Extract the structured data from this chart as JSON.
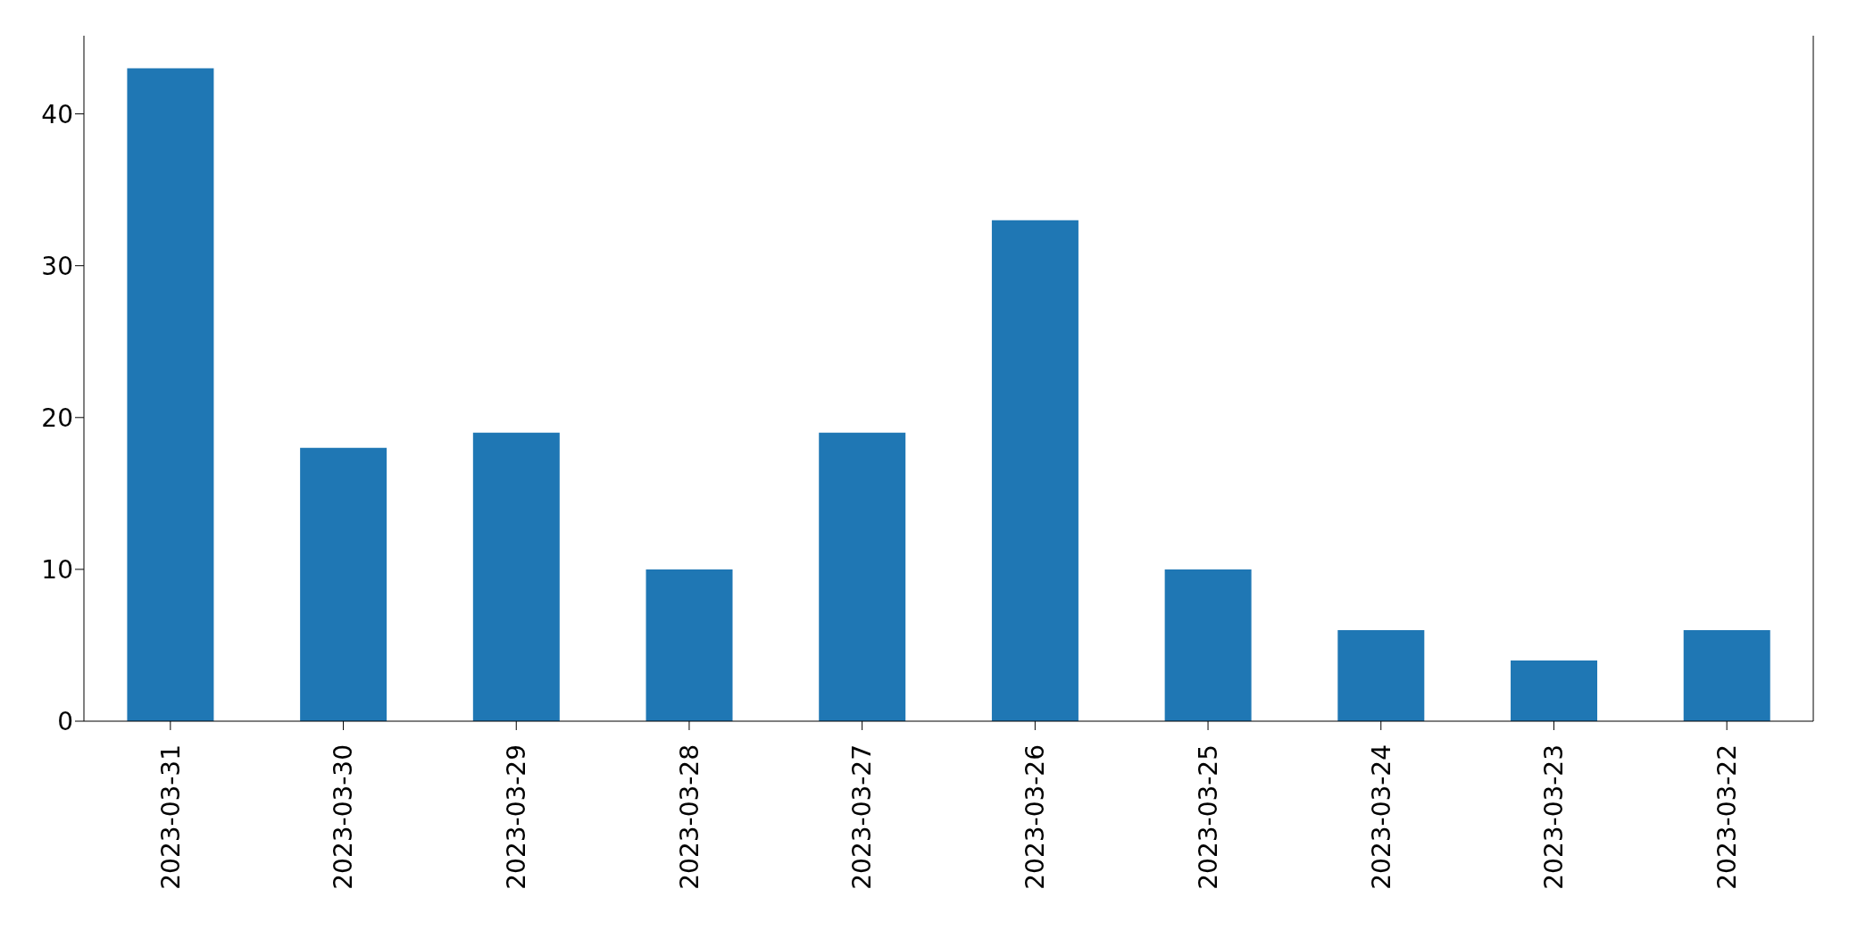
{
  "chart_data": {
    "type": "bar",
    "categories": [
      "2023-03-31",
      "2023-03-30",
      "2023-03-29",
      "2023-03-28",
      "2023-03-27",
      "2023-03-26",
      "2023-03-25",
      "2023-03-24",
      "2023-03-23",
      "2023-03-22"
    ],
    "values": [
      43,
      18,
      19,
      10,
      19,
      33,
      10,
      6,
      4,
      6
    ],
    "color": "#1f77b4",
    "ylim": [
      0,
      45.15
    ],
    "yticks": [
      0,
      10,
      20,
      30,
      40
    ]
  }
}
